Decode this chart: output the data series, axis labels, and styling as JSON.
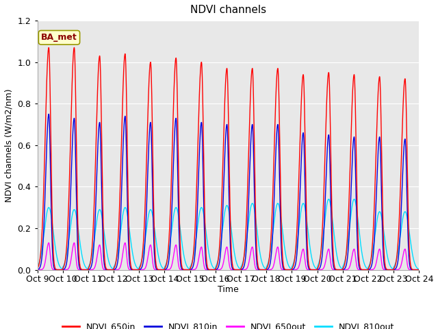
{
  "title": "NDVI channels",
  "ylabel": "NDVI channels (W/m2/nm)",
  "xlabel": "Time",
  "ylim": [
    0,
    1.2
  ],
  "yticks": [
    0.0,
    0.2,
    0.4,
    0.6,
    0.8,
    1.0,
    1.2
  ],
  "xtick_labels": [
    "Oct 9",
    "Oct 10",
    "Oct 11",
    "Oct 12",
    "Oct 13",
    "Oct 14",
    "Oct 15",
    "Oct 16",
    "Oct 17",
    "Oct 18",
    "Oct 19",
    "Oct 20",
    "Oct 21",
    "Oct 22",
    "Oct 23",
    "Oct 24"
  ],
  "annotation": "BA_met",
  "colors": {
    "NDVI_650in": "#ff0000",
    "NDVI_810in": "#0000dd",
    "NDVI_650out": "#ff00ff",
    "NDVI_810out": "#00ddff"
  },
  "peak_650in": [
    1.07,
    1.07,
    1.03,
    1.04,
    1.0,
    1.02,
    1.0,
    0.97,
    0.97,
    0.97,
    0.94,
    0.95,
    0.94,
    0.93,
    0.92
  ],
  "peak_810in": [
    0.75,
    0.73,
    0.71,
    0.74,
    0.71,
    0.73,
    0.71,
    0.7,
    0.7,
    0.7,
    0.66,
    0.65,
    0.64,
    0.64,
    0.63
  ],
  "peak_650out": [
    0.13,
    0.13,
    0.12,
    0.13,
    0.12,
    0.12,
    0.11,
    0.11,
    0.11,
    0.11,
    0.1,
    0.1,
    0.1,
    0.1,
    0.1
  ],
  "peak_810out": [
    0.3,
    0.29,
    0.29,
    0.3,
    0.29,
    0.3,
    0.3,
    0.31,
    0.32,
    0.32,
    0.32,
    0.34,
    0.34,
    0.28,
    0.28
  ],
  "plot_bg_color": "#e8e8e8",
  "fig_bg_color": "#ffffff",
  "grid_color": "#ffffff",
  "figsize": [
    6.4,
    4.8
  ],
  "dpi": 100
}
